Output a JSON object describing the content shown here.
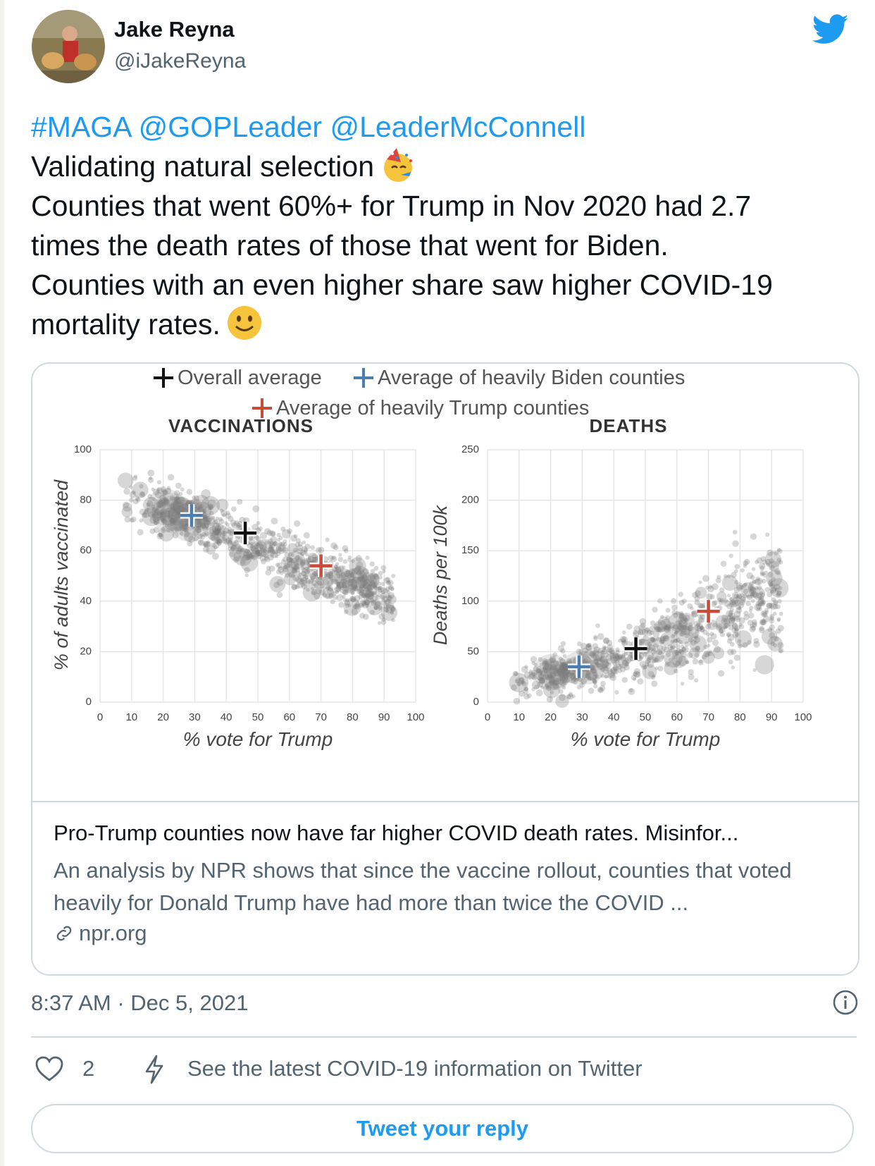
{
  "user": {
    "name": "Jake Reyna",
    "handle": "@iJakeReyna"
  },
  "tweet": {
    "mentions": "#MAGA @GOPLeader @LeaderMcConnell",
    "line1": "Validating natural selection",
    "line2": "Counties that went 60%+ for Trump in Nov 2020 had 2.7",
    "line3": "times the death rates of those that went for Biden.",
    "line4": "Counties with an even higher share saw higher COVID-19",
    "line5": "mortality rates.",
    "emoji1": "partying-face-emoji",
    "emoji2": "smiling-face-emoji"
  },
  "card": {
    "title": "Pro-Trump counties now have far higher COVID death rates. Misinfor...",
    "description": "An analysis by NPR shows that since the vaccine rollout, counties that voted heavily for Donald Trump have had more than twice the COVID ...",
    "domain": "npr.org"
  },
  "timestamp": "8:37 AM · Dec 5, 2021",
  "actions": {
    "likes": "2",
    "covid_info": "See the latest COVID-19 information on Twitter",
    "reply_button": "Tweet your reply"
  },
  "colors": {
    "accent": "#1d9bf0",
    "biden": "#4a7fb0",
    "trump": "#cc4a38",
    "overall": "#111111",
    "point": "#7a7a7a"
  },
  "chart_data": [
    {
      "type": "scatter",
      "title": "VACCINATIONS",
      "xlabel": "% vote for Trump",
      "ylabel": "% of adults vaccinated",
      "xlim": [
        0,
        100
      ],
      "ylim": [
        0,
        100
      ],
      "xticks": [
        0,
        10,
        20,
        30,
        40,
        50,
        60,
        70,
        80,
        90,
        100
      ],
      "yticks": [
        0,
        20,
        40,
        60,
        80,
        100
      ],
      "trend": {
        "x": [
          10,
          20,
          30,
          40,
          50,
          60,
          70,
          80,
          90
        ],
        "y": [
          80,
          77,
          72,
          67,
          62,
          57,
          52,
          47,
          42
        ]
      },
      "markers": [
        {
          "name": "Overall average",
          "x": 46,
          "y": 67,
          "color": "#111111"
        },
        {
          "name": "Average of heavily Biden counties",
          "x": 29,
          "y": 74,
          "color": "#4a7fb0"
        },
        {
          "name": "Average of heavily Trump counties",
          "x": 70,
          "y": 54,
          "color": "#cc4a38"
        }
      ]
    },
    {
      "type": "scatter",
      "title": "DEATHS",
      "xlabel": "% vote for Trump",
      "ylabel": "Deaths per 100k",
      "xlim": [
        0,
        100
      ],
      "ylim": [
        0,
        250
      ],
      "xticks": [
        0,
        10,
        20,
        30,
        40,
        50,
        60,
        70,
        80,
        90,
        100
      ],
      "yticks": [
        0,
        50,
        100,
        150,
        200,
        250
      ],
      "trend": {
        "x": [
          10,
          20,
          30,
          40,
          50,
          60,
          70,
          80,
          90
        ],
        "y": [
          20,
          28,
          35,
          43,
          52,
          65,
          82,
          95,
          105
        ]
      },
      "markers": [
        {
          "name": "Overall average",
          "x": 47,
          "y": 53,
          "color": "#111111"
        },
        {
          "name": "Average of heavily Biden counties",
          "x": 29,
          "y": 35,
          "color": "#4a7fb0"
        },
        {
          "name": "Average of heavily Trump counties",
          "x": 70,
          "y": 90,
          "color": "#cc4a38"
        }
      ]
    }
  ]
}
